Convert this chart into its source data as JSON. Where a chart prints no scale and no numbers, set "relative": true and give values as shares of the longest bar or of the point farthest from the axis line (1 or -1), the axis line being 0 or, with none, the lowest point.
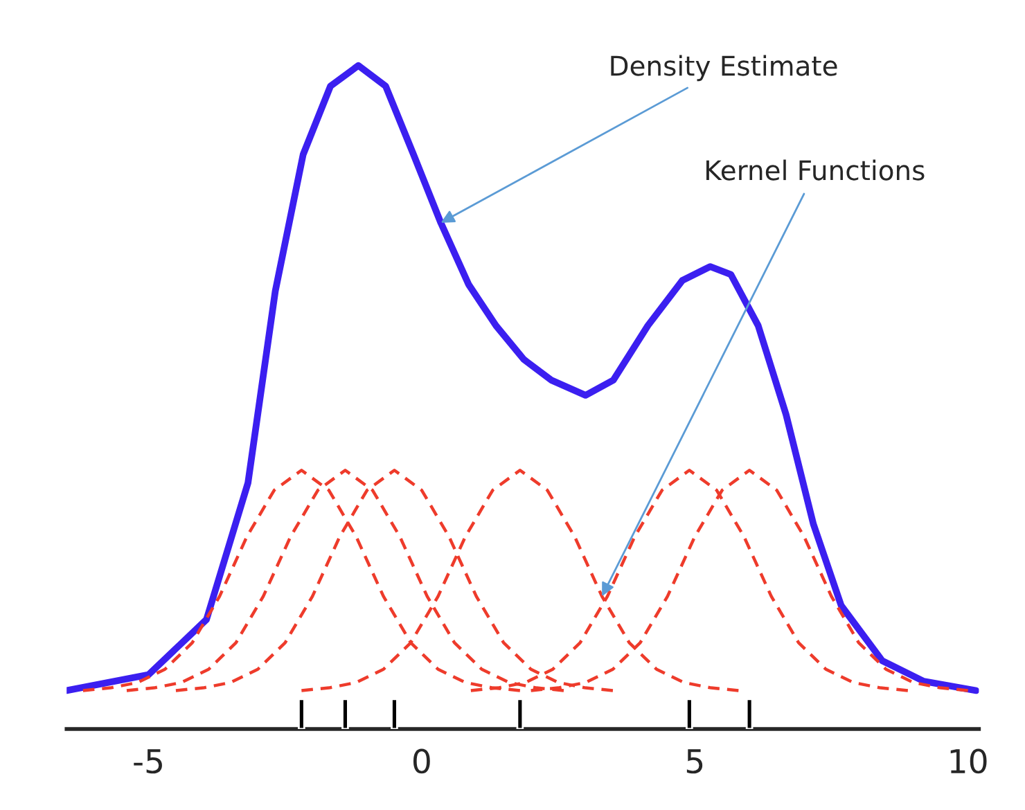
{
  "chart_data": {
    "type": "line",
    "relative": true,
    "xlim": [
      -6.5,
      10.2
    ],
    "xticks": [
      -5,
      0,
      5,
      10
    ],
    "grid": false,
    "legend": false,
    "line_style": "dashed",
    "marker": "none",
    "series": [
      {
        "color": "#3b1ff0",
        "line_style": "solid",
        "x": [
          -6.5,
          -5,
          -3.94,
          -3.18,
          -2.68,
          -2.17,
          -1.67,
          -1.16,
          -0.66,
          -0.15,
          0.35,
          0.86,
          1.36,
          1.87,
          2.37,
          3.0,
          3.51,
          4.14,
          4.77,
          5.28,
          5.66,
          6.16,
          6.67,
          7.17,
          7.68,
          8.43,
          9.19,
          10.15
        ],
        "values": [
          0.058,
          0.082,
          0.165,
          0.371,
          0.66,
          0.866,
          0.969,
          1.0,
          0.969,
          0.866,
          0.763,
          0.67,
          0.608,
          0.557,
          0.526,
          0.503,
          0.526,
          0.608,
          0.676,
          0.697,
          0.685,
          0.608,
          0.474,
          0.309,
          0.186,
          0.103,
          0.072,
          0.058
        ]
      },
      {
        "color": "#ee3b2b",
        "x": [
          -6.2,
          -5.7,
          -5.2,
          -4.7,
          -4.2,
          -3.7,
          -3.2,
          -2.7,
          -2.2,
          -1.7,
          -1.2,
          -0.7,
          -0.2,
          0.3,
          0.8,
          1.3,
          1.8
        ],
        "values": [
          0.058,
          0.062,
          0.07,
          0.09,
          0.13,
          0.2,
          0.29,
          0.36,
          0.39,
          0.36,
          0.29,
          0.2,
          0.13,
          0.09,
          0.07,
          0.062,
          0.058
        ]
      },
      {
        "color": "#ee3b2b",
        "x": [
          -5.4,
          -4.9,
          -4.4,
          -3.9,
          -3.4,
          -2.9,
          -2.4,
          -1.9,
          -1.4,
          -0.9,
          -0.4,
          0.1,
          0.6,
          1.1,
          1.6,
          2.1,
          2.6
        ],
        "values": [
          0.058,
          0.062,
          0.07,
          0.09,
          0.13,
          0.2,
          0.29,
          0.36,
          0.39,
          0.36,
          0.29,
          0.2,
          0.13,
          0.09,
          0.07,
          0.062,
          0.058
        ]
      },
      {
        "color": "#ee3b2b",
        "x": [
          -4.5,
          -4.0,
          -3.5,
          -3.0,
          -2.5,
          -2.0,
          -1.5,
          -1.0,
          -0.5,
          0.0,
          0.5,
          1.0,
          1.5,
          2.0,
          2.5,
          3.0,
          3.5
        ],
        "values": [
          0.058,
          0.062,
          0.07,
          0.09,
          0.13,
          0.2,
          0.29,
          0.36,
          0.39,
          0.36,
          0.29,
          0.2,
          0.13,
          0.09,
          0.07,
          0.062,
          0.058
        ]
      },
      {
        "color": "#ee3b2b",
        "x": [
          -2.2,
          -1.7,
          -1.2,
          -0.7,
          -0.2,
          0.3,
          0.8,
          1.3,
          1.8,
          2.3,
          2.8,
          3.3,
          3.8,
          4.3,
          4.8,
          5.3,
          5.8
        ],
        "values": [
          0.058,
          0.062,
          0.07,
          0.09,
          0.13,
          0.2,
          0.29,
          0.36,
          0.39,
          0.36,
          0.29,
          0.2,
          0.13,
          0.09,
          0.07,
          0.062,
          0.058
        ]
      },
      {
        "color": "#ee3b2b",
        "x": [
          0.9,
          1.4,
          1.9,
          2.4,
          2.9,
          3.4,
          3.9,
          4.4,
          4.9,
          5.4,
          5.9,
          6.4,
          6.9,
          7.4,
          7.9,
          8.4,
          8.9
        ],
        "values": [
          0.058,
          0.062,
          0.07,
          0.09,
          0.13,
          0.2,
          0.29,
          0.36,
          0.39,
          0.36,
          0.29,
          0.2,
          0.13,
          0.09,
          0.07,
          0.062,
          0.058
        ]
      },
      {
        "color": "#ee3b2b",
        "x": [
          2.0,
          2.5,
          3.0,
          3.5,
          4.0,
          4.5,
          5.0,
          5.5,
          6.0,
          6.5,
          7.0,
          7.5,
          8.0,
          8.5,
          9.0,
          9.5,
          10.0
        ],
        "values": [
          0.058,
          0.062,
          0.07,
          0.09,
          0.13,
          0.2,
          0.29,
          0.36,
          0.39,
          0.36,
          0.29,
          0.2,
          0.13,
          0.09,
          0.07,
          0.062,
          0.058
        ]
      },
      {
        "type": "bar",
        "color": "#000000",
        "x": [
          -2.2,
          -1.4,
          -0.5,
          1.8,
          4.9,
          6.0
        ],
        "values": [
          0.045,
          0.045,
          0.045,
          0.045,
          0.045,
          0.045
        ]
      }
    ],
    "annotations": [
      {
        "text": "Density Estimate",
        "x": 0.35,
        "y": 0.763
      },
      {
        "text": "Kernel Functions",
        "x": 3.3,
        "y": 0.2
      }
    ]
  }
}
